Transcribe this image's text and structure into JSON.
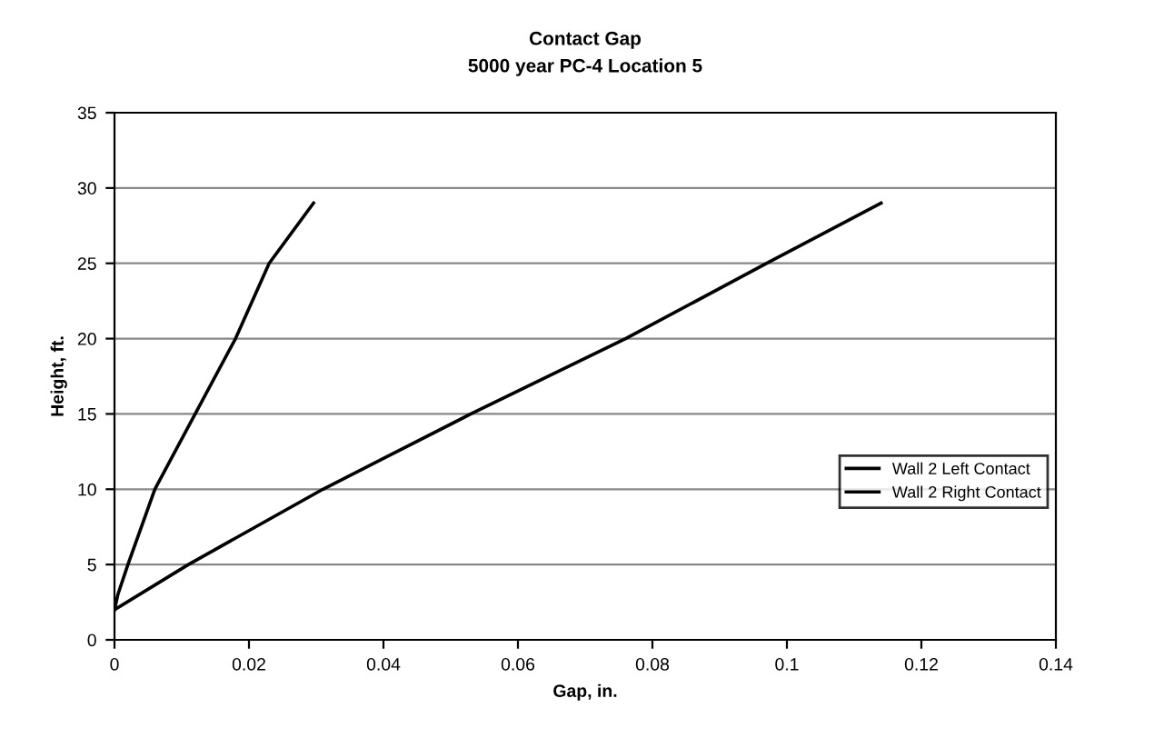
{
  "chart_data": {
    "type": "line",
    "title": "Contact Gap",
    "subtitle": "5000 year PC-4 Location 5",
    "xlabel": "Gap, in.",
    "ylabel": "Height, ft.",
    "series": [
      {
        "name": "Wall 2 Left Contact",
        "color": "#000000",
        "x": [
          0,
          0.0005,
          0.002,
          0.006,
          0.012,
          0.018,
          0.023,
          0.0296
        ],
        "values": [
          2,
          3,
          5,
          10,
          15,
          20,
          25,
          29
        ]
      },
      {
        "name": "Wall 2 Right Contact",
        "color": "#000000",
        "x": [
          0,
          0.011,
          0.031,
          0.053,
          0.076,
          0.097,
          0.114
        ],
        "values": [
          2,
          5,
          10,
          15,
          20,
          25,
          29
        ]
      }
    ],
    "xlim": [
      0,
      0.14
    ],
    "xticks": [
      0,
      0.02,
      0.04,
      0.06,
      0.08,
      0.1,
      0.12,
      0.14
    ],
    "ylim": [
      0,
      35
    ],
    "yticks": [
      0,
      5,
      10,
      15,
      20,
      25,
      30,
      35
    ],
    "grid": "y",
    "legend": "right",
    "marker": "none",
    "line_style": "solid"
  }
}
